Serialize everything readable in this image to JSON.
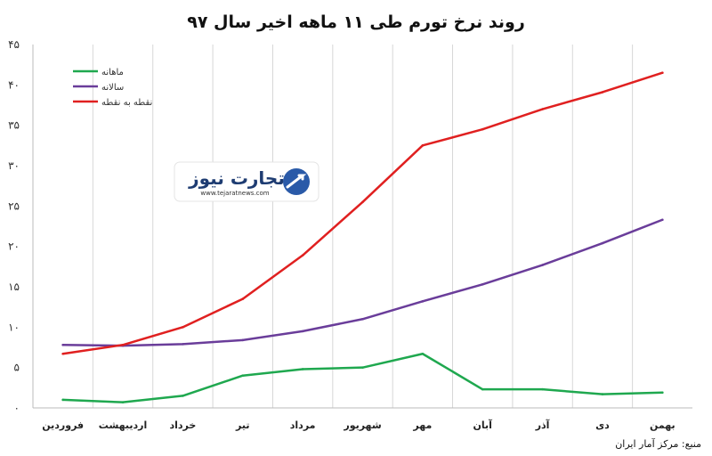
{
  "chart_data": {
    "type": "line",
    "title": "روند نرخ تورم طی ۱۱ ماهه اخیر سال ۹۷",
    "categories": [
      "فروردین",
      "اردیبهشت",
      "خرداد",
      "تیر",
      "مرداد",
      "شهریور",
      "مهر",
      "آبان",
      "آذر",
      "دی",
      "بهمن"
    ],
    "ylim": [
      0,
      45
    ],
    "yticks": [
      0,
      5,
      10,
      15,
      20,
      25,
      30,
      35,
      40,
      45
    ],
    "ytick_labels": [
      "۰",
      "۵",
      "۱۰",
      "۱۵",
      "۲۰",
      "۲۵",
      "۳۰",
      "۳۵",
      "۴۰",
      "۴۵"
    ],
    "grid": "vertical",
    "legend_position": "top-left",
    "series": [
      {
        "name": "ماهانه",
        "color": "#1fa84f",
        "values": [
          1.0,
          0.7,
          1.5,
          4.0,
          4.8,
          5.0,
          6.7,
          2.3,
          2.3,
          1.7,
          1.9
        ]
      },
      {
        "name": "سالانه",
        "color": "#6a3d9a",
        "values": [
          7.8,
          7.7,
          7.9,
          8.4,
          9.5,
          11.0,
          13.2,
          15.3,
          17.7,
          20.4,
          23.3
        ]
      },
      {
        "name": "نقطه به نقطه",
        "color": "#e02020",
        "values": [
          6.7,
          7.8,
          10.0,
          13.5,
          18.9,
          25.5,
          32.5,
          34.5,
          37.0,
          39.1,
          41.5
        ]
      }
    ]
  },
  "logo": {
    "name": "تجارت نیوز",
    "url": "www.tejaratnews.com"
  },
  "source": "منبع: مرکز آمار ایران"
}
